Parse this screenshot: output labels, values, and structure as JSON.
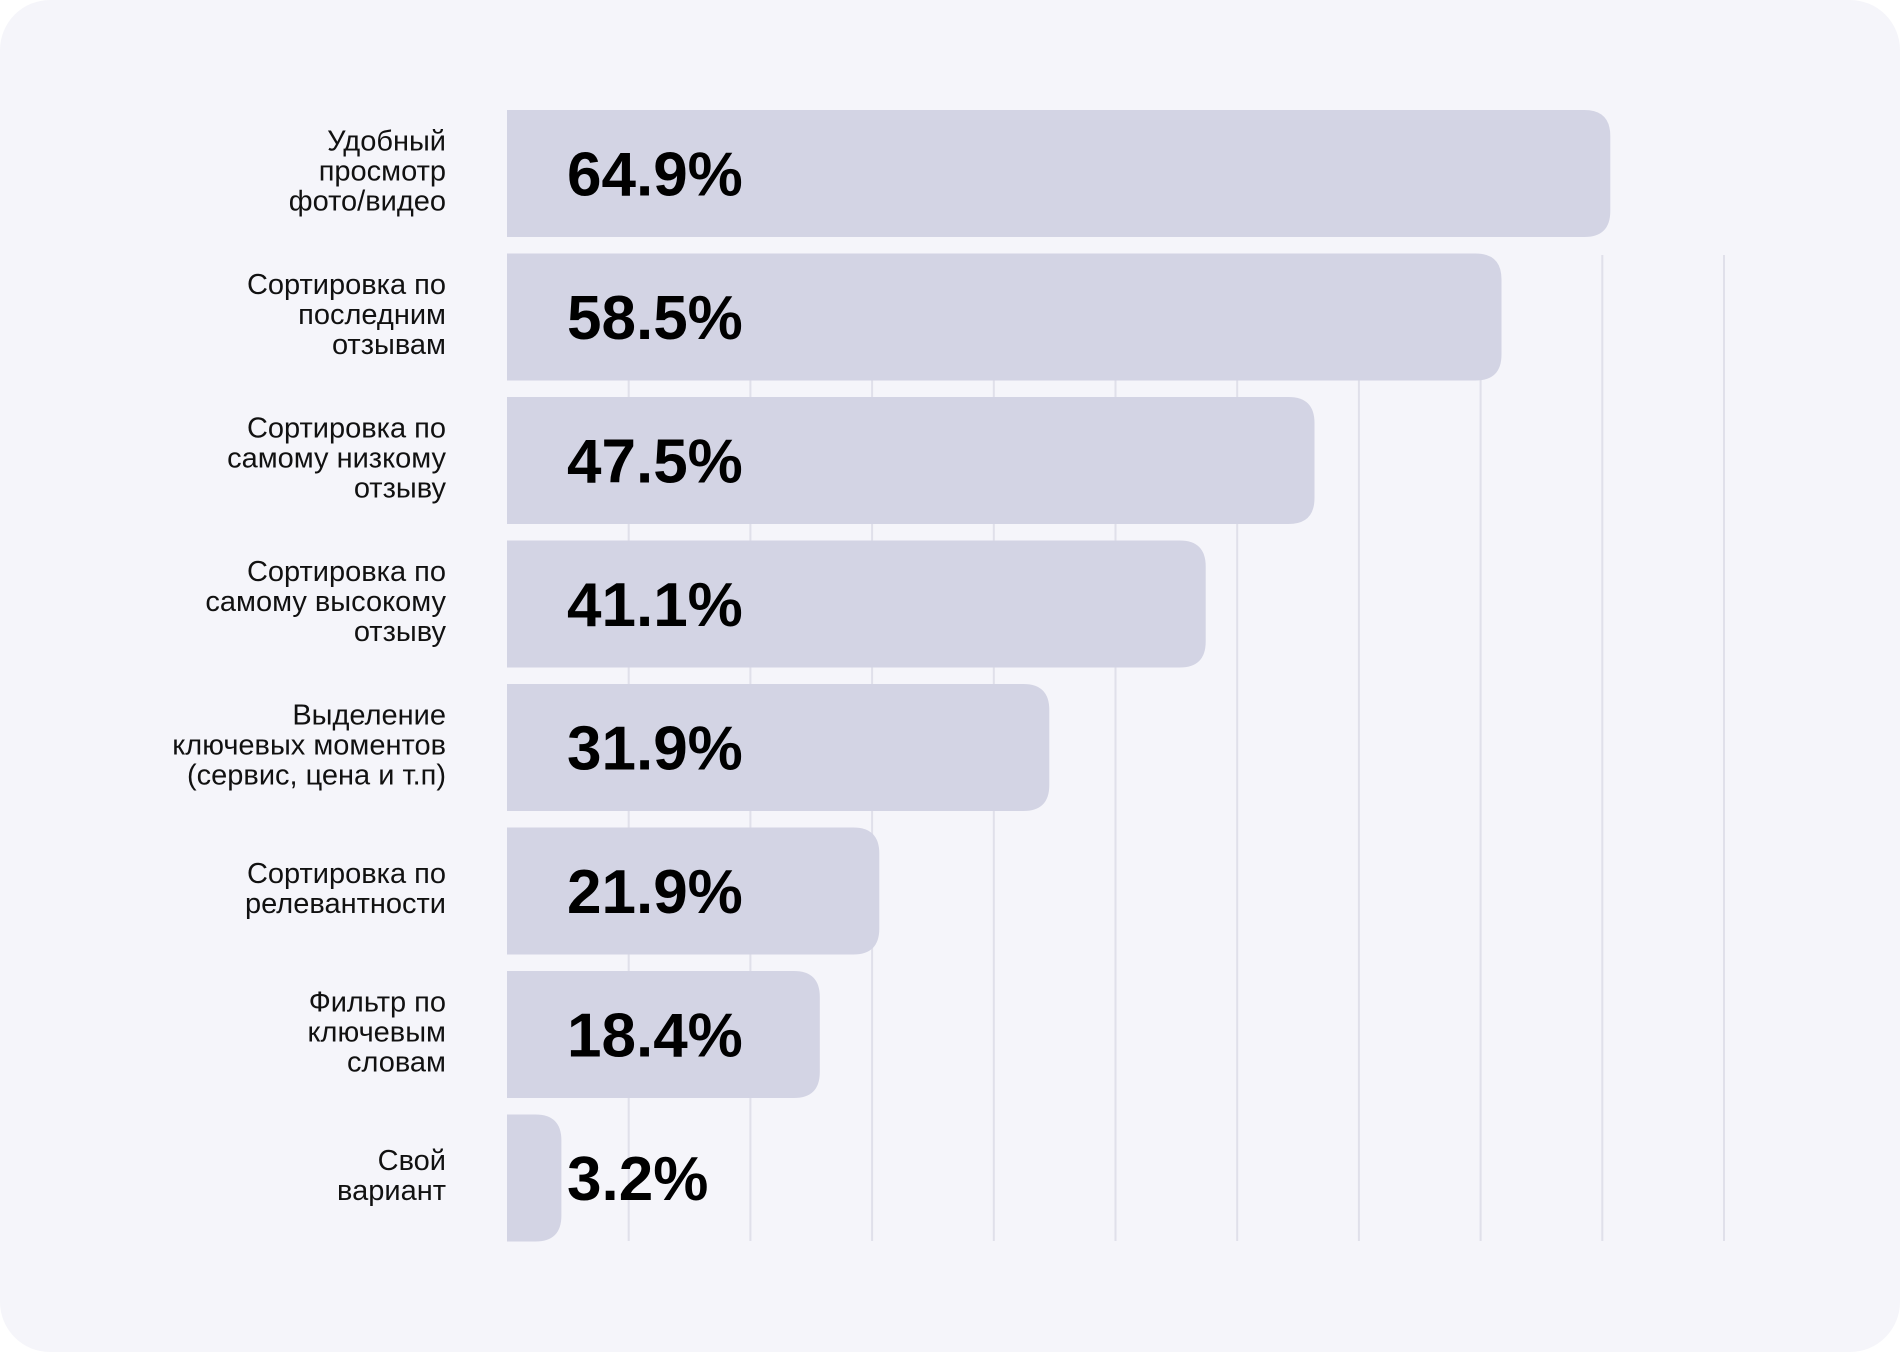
{
  "chart_data": {
    "type": "bar",
    "orientation": "horizontal",
    "categories": [
      [
        "Удобный",
        "просмотр",
        "фото/видео"
      ],
      [
        "Сортировка по",
        "последним",
        "отзывам"
      ],
      [
        "Сортировка по",
        "самому низкому",
        "отзыву"
      ],
      [
        "Сортировка по",
        "самому высокому",
        "отзыву"
      ],
      [
        "Выделение",
        "ключевых моментов",
        "(сервис, цена и т.п)"
      ],
      [
        "Сортировка по",
        "релевантности"
      ],
      [
        "Фильтр по",
        "ключевым",
        "словам"
      ],
      [
        "Свой",
        "вариант"
      ]
    ],
    "values": [
      64.9,
      58.5,
      47.5,
      41.1,
      31.9,
      21.9,
      18.4,
      3.2
    ],
    "value_labels": [
      "64.9%",
      "58.5%",
      "47.5%",
      "41.1%",
      "31.9%",
      "21.9%",
      "18.4%",
      "3.2%"
    ],
    "bar_color": "#d3d4e4",
    "background_color": "#f5f5fa",
    "grid": true,
    "gridline_color": "#e0e0ea",
    "gridline_count": 10,
    "legend": "none"
  }
}
